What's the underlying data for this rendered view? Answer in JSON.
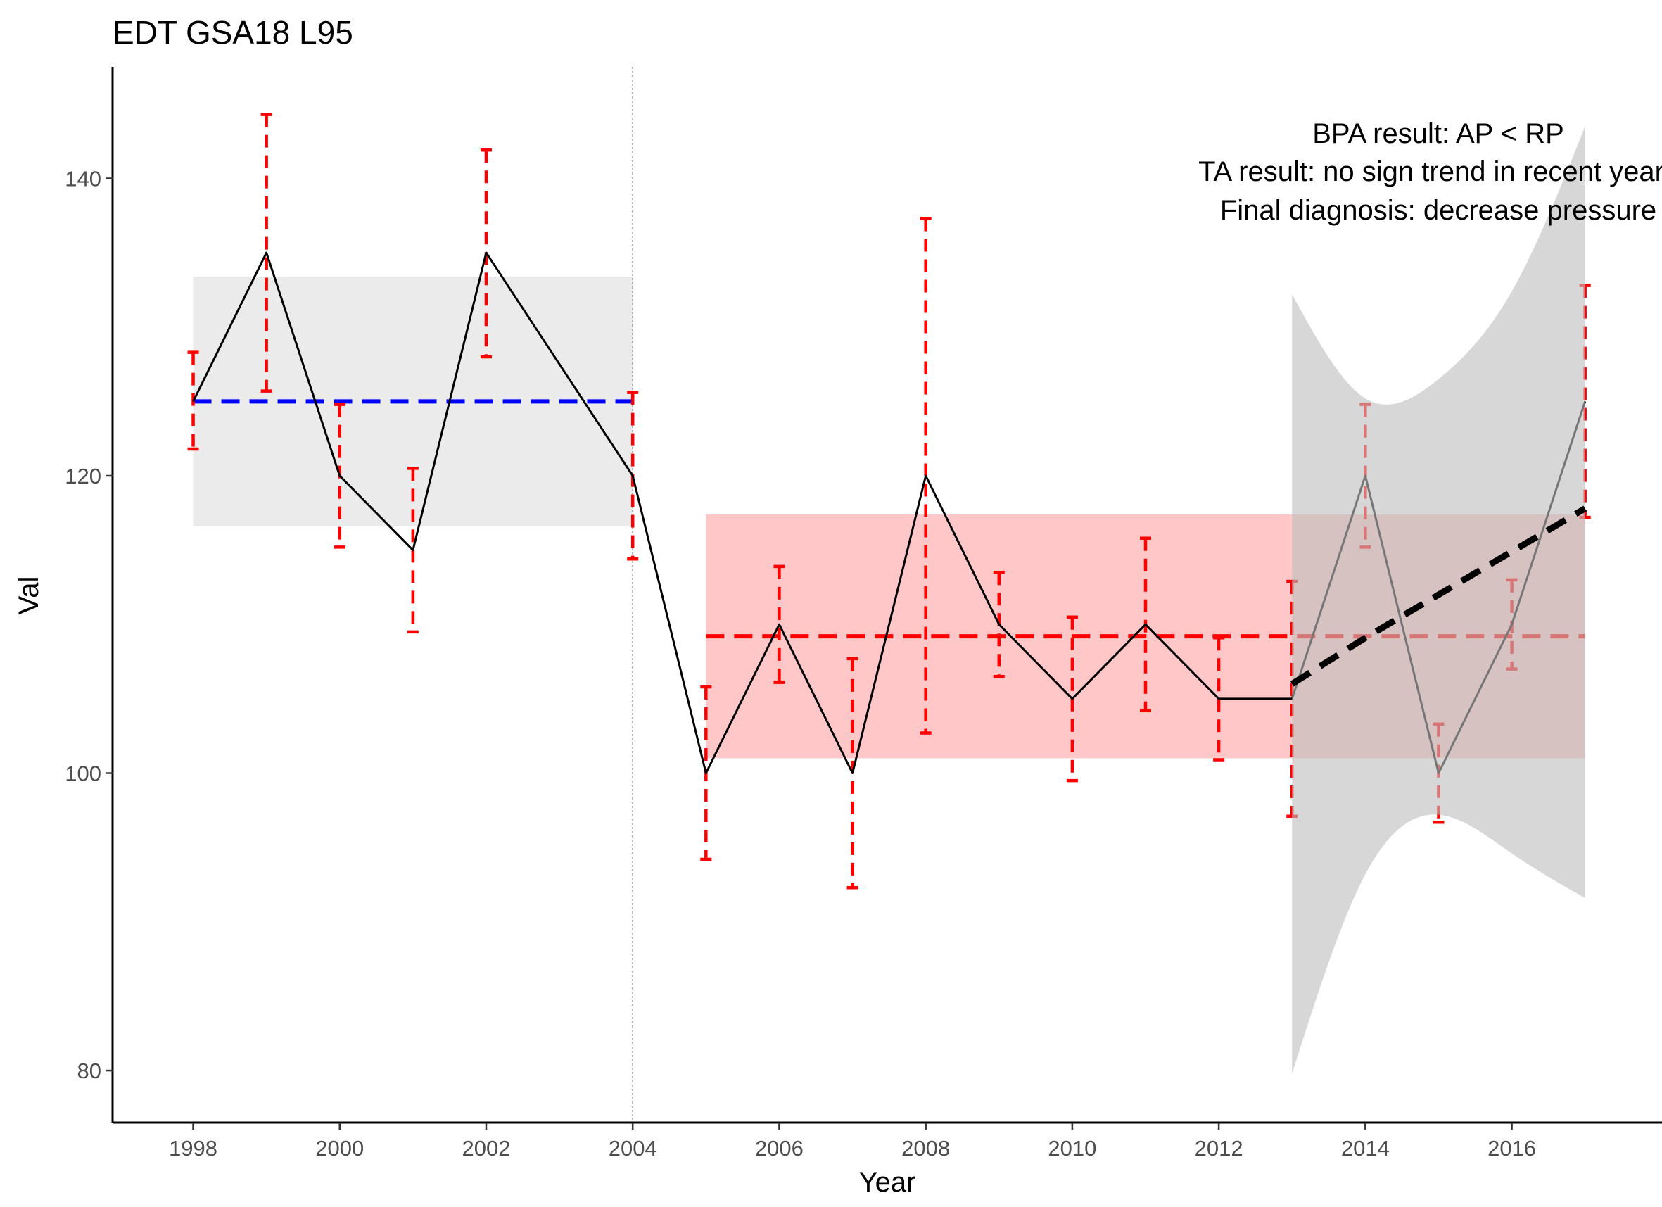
{
  "colors": {
    "reference_band": "#ebebeb",
    "recent_band": "#ffc7c7",
    "trend_band": "#bfbfbf",
    "reference_mean": "#0000ff",
    "recent_mean": "#ff0000",
    "errorbar": "#ff0000",
    "series": "#000000",
    "trend": "#000000",
    "split_line": "#808080"
  },
  "chart_data": {
    "type": "line",
    "title": "EDT GSA18 L95",
    "xlabel": "Year",
    "ylabel": "Val",
    "xlim": [
      1996.9,
      2018.05
    ],
    "ylim": [
      76.5,
      147.5
    ],
    "xticks": [
      1998,
      2000,
      2002,
      2004,
      2006,
      2008,
      2010,
      2012,
      2014,
      2016
    ],
    "yticks": [
      80,
      100,
      120,
      140
    ],
    "grid": false,
    "legend": "none",
    "series": [
      {
        "x": [
          1998,
          1999,
          2000,
          2001,
          2002,
          2004,
          2005,
          2006,
          2007,
          2008,
          2009,
          2010,
          2011,
          2012,
          2013,
          2014,
          2015,
          2016,
          2017
        ],
        "values": [
          125,
          135,
          120,
          115,
          135,
          120,
          100,
          110,
          100,
          120,
          110,
          105,
          110,
          105,
          105,
          120,
          100,
          110,
          125
        ],
        "lower": [
          121.8,
          125.7,
          115.2,
          109.5,
          128.0,
          114.4,
          94.2,
          106.1,
          92.3,
          102.7,
          106.5,
          99.5,
          104.2,
          100.9,
          97.1,
          115.2,
          96.7,
          107.0,
          117.2
        ],
        "upper": [
          128.3,
          144.3,
          124.8,
          120.5,
          141.9,
          125.6,
          105.8,
          113.9,
          107.7,
          137.3,
          113.5,
          110.5,
          115.8,
          109.1,
          112.9,
          124.8,
          103.3,
          113.0,
          132.8
        ]
      }
    ],
    "reference_period": {
      "start": 1998,
      "end": 2004,
      "mean": 125,
      "band": [
        116.6,
        133.4
      ]
    },
    "recent_period": {
      "start": 2005,
      "end": 2017,
      "mean": 109.2,
      "band": [
        101.0,
        117.4
      ]
    },
    "split_year": 2004,
    "trend": {
      "x": [
        2013,
        2014,
        2015,
        2016,
        2017
      ],
      "fit": [
        106.0,
        109.1,
        112.0,
        114.9,
        117.8
      ],
      "lower": [
        79.8,
        93.2,
        97.2,
        94.6,
        91.6
      ],
      "upper": [
        132.2,
        125.2,
        126.5,
        132.4,
        143.5
      ]
    },
    "annotations": [
      "BPA result: AP < RP",
      "TA result: no sign trend in recent years",
      "Final diagnosis: decrease pressure"
    ]
  }
}
